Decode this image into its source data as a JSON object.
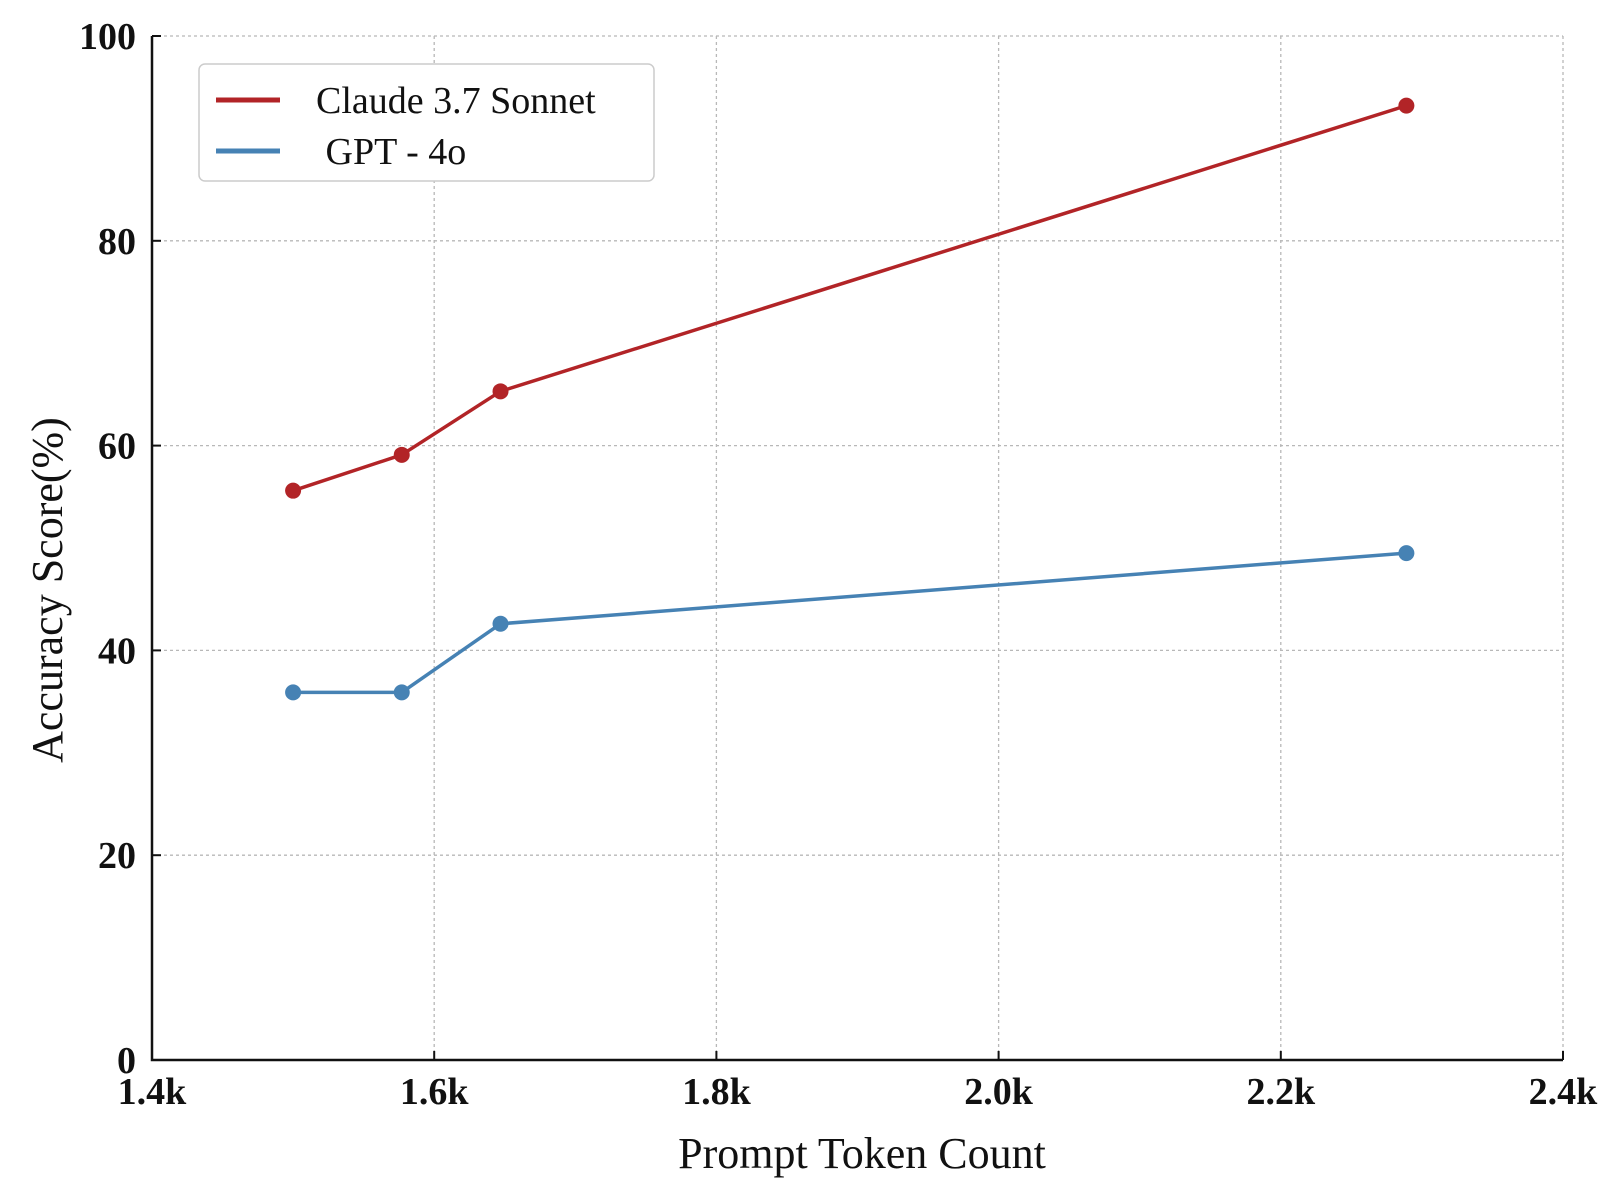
{
  "chart_data": {
    "type": "line",
    "xlabel": "Prompt Token Count",
    "ylabel": "Accuracy Score(%)",
    "xlim": [
      1400,
      2400
    ],
    "ylim": [
      0,
      100
    ],
    "x_ticks": [
      {
        "value": 1400,
        "label": "1.4k"
      },
      {
        "value": 1600,
        "label": "1.6k"
      },
      {
        "value": 1800,
        "label": "1.8k"
      },
      {
        "value": 2000,
        "label": "2.0k"
      },
      {
        "value": 2200,
        "label": "2.2k"
      },
      {
        "value": 2400,
        "label": "2.4k"
      }
    ],
    "y_ticks": [
      {
        "value": 0,
        "label": "0"
      },
      {
        "value": 20,
        "label": "20"
      },
      {
        "value": 40,
        "label": "40"
      },
      {
        "value": 60,
        "label": "60"
      },
      {
        "value": 80,
        "label": "80"
      },
      {
        "value": 100,
        "label": "100"
      }
    ],
    "grid": true,
    "legend_position": "top-left",
    "series": [
      {
        "name": "Claude 3.7 Sonnet",
        "color": "#b22427",
        "x": [
          1500,
          1577,
          1647,
          2289
        ],
        "y": [
          55.6,
          59.1,
          65.3,
          93.2
        ]
      },
      {
        "name": " GPT - 4o",
        "color": "#4682b4",
        "x": [
          1500,
          1577,
          1647,
          2289
        ],
        "y": [
          35.9,
          35.9,
          42.6,
          49.5
        ]
      }
    ]
  }
}
